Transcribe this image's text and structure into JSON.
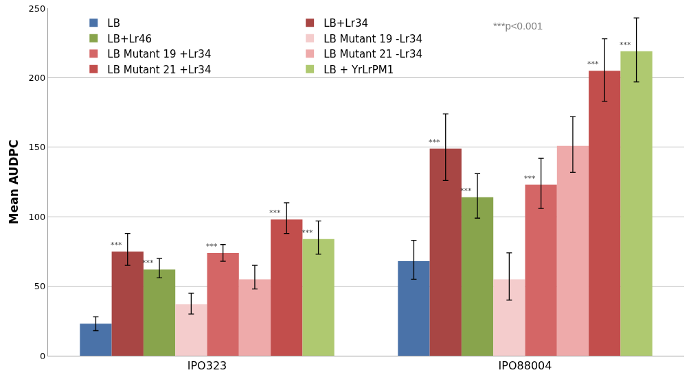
{
  "chart_data": {
    "type": "bar",
    "ylabel": "Mean AUDPC",
    "categories": [
      "IPO323",
      "IPO88004"
    ],
    "series": [
      {
        "name": "LB",
        "color": "#4a72a8",
        "values": [
          23,
          68
        ],
        "errors": [
          [
            18,
            28
          ],
          [
            55,
            83
          ]
        ],
        "value_labels": [
          null,
          null
        ]
      },
      {
        "name": "LB+Lr34",
        "color": "#a84644",
        "values": [
          75,
          149
        ],
        "errors": [
          [
            65,
            88
          ],
          [
            126,
            174
          ]
        ],
        "value_labels": [
          "***",
          "***"
        ]
      },
      {
        "name": "LB+Lr46",
        "color": "#88a44c",
        "values": [
          62,
          114
        ],
        "errors": [
          [
            56,
            70
          ],
          [
            99,
            131
          ]
        ],
        "value_labels": [
          "***",
          "***"
        ]
      },
      {
        "name": "LB Mutant 19 -Lr34",
        "color": "#f4cccc",
        "values": [
          37,
          55
        ],
        "errors": [
          [
            30,
            45
          ],
          [
            40,
            74
          ]
        ],
        "value_labels": [
          null,
          null
        ]
      },
      {
        "name": "LB Mutant 19 +Lr34",
        "color": "#d46666",
        "values": [
          74,
          123
        ],
        "errors": [
          [
            68,
            80
          ],
          [
            106,
            142
          ]
        ],
        "value_labels": [
          "***",
          "***"
        ]
      },
      {
        "name": "LB Mutant 21 -Lr34",
        "color": "#eeaaaa",
        "values": [
          55,
          151
        ],
        "errors": [
          [
            48,
            65
          ],
          [
            132,
            172
          ]
        ],
        "value_labels": [
          null,
          null
        ]
      },
      {
        "name": "LB Mutant 21 +Lr34",
        "color": "#c24e4c",
        "values": [
          98,
          205
        ],
        "errors": [
          [
            88,
            110
          ],
          [
            183,
            228
          ]
        ],
        "value_labels": [
          "***",
          "***"
        ]
      },
      {
        "name": "LB + YrLrPM1",
        "color": "#afc970",
        "values": [
          84,
          219
        ],
        "errors": [
          [
            73,
            97
          ],
          [
            197,
            243
          ]
        ],
        "value_labels": [
          "***",
          "***"
        ]
      }
    ],
    "ylim": [
      0,
      250
    ],
    "yticks": [
      0,
      50,
      100,
      150,
      200,
      250
    ],
    "grid": "y",
    "legend": "top left",
    "annotations": [
      "***p<0.001"
    ]
  }
}
